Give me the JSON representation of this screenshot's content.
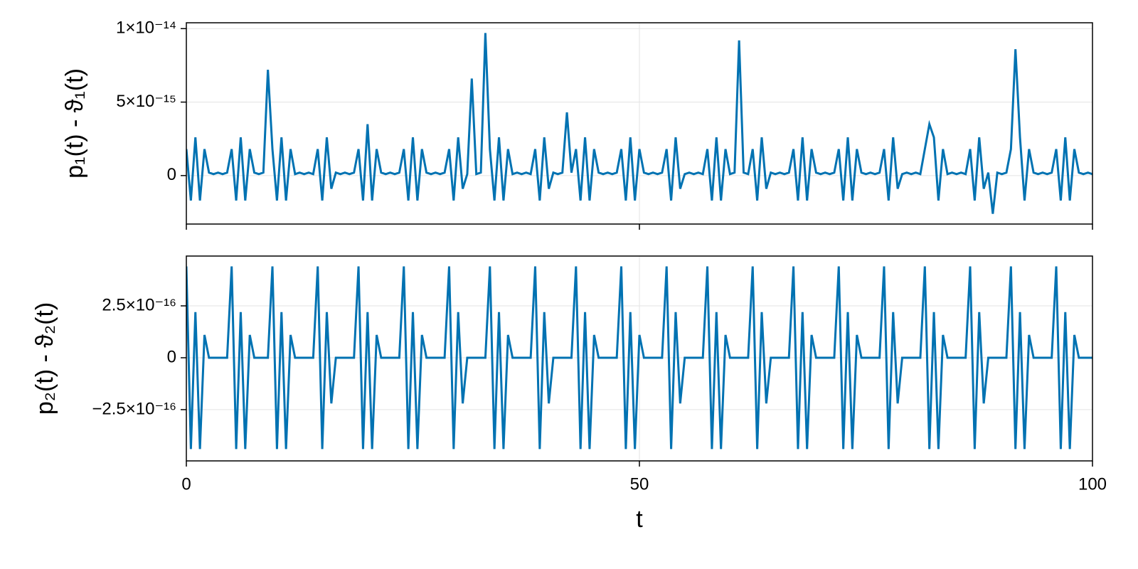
{
  "chart_data": [
    {
      "type": "line",
      "ylabel": "p₁(t) - ϑ₁(t)",
      "show_xtick_labels": false,
      "grid": true,
      "xlim": [
        0,
        100
      ],
      "xticks": [
        0,
        50,
        100
      ],
      "ylim": [
        -3.3e-15,
        1.04e-14
      ],
      "yticks": [
        0,
        {
          "value": 5e-15,
          "label": "5×10⁻¹⁵"
        },
        {
          "value": 1e-14,
          "label": "1×10⁻¹⁴"
        }
      ],
      "x": [
        0,
        0.5,
        1,
        1.5,
        2,
        2.5,
        3,
        3.5,
        4,
        4.5,
        5,
        5.5,
        6,
        6.5,
        7,
        7.5,
        8,
        8.5,
        9,
        9.5,
        10,
        10.5,
        11,
        11.5,
        12,
        12.5,
        13,
        13.5,
        14,
        14.5,
        15,
        15.5,
        16,
        16.5,
        17,
        17.5,
        18,
        18.5,
        19,
        19.5,
        20,
        20.5,
        21,
        21.5,
        22,
        22.5,
        23,
        23.5,
        24,
        24.5,
        25,
        25.5,
        26,
        26.5,
        27,
        27.5,
        28,
        28.5,
        29,
        29.5,
        30,
        30.5,
        31,
        31.5,
        32,
        32.5,
        33,
        33.5,
        34,
        34.5,
        35,
        35.5,
        36,
        36.5,
        37,
        37.5,
        38,
        38.5,
        39,
        39.5,
        40,
        40.5,
        41,
        41.5,
        42,
        42.5,
        43,
        43.5,
        44,
        44.5,
        45,
        45.5,
        46,
        46.5,
        47,
        47.5,
        48,
        48.5,
        49,
        49.5,
        50,
        50.5,
        51,
        51.5,
        52,
        52.5,
        53,
        53.5,
        54,
        54.5,
        55,
        55.5,
        56,
        56.5,
        57,
        57.5,
        58,
        58.5,
        59,
        59.5,
        60,
        60.5,
        61,
        61.5,
        62,
        62.5,
        63,
        63.5,
        64,
        64.5,
        65,
        65.5,
        66,
        66.5,
        67,
        67.5,
        68,
        68.5,
        69,
        69.5,
        70,
        70.5,
        71,
        71.5,
        72,
        72.5,
        73,
        73.5,
        74,
        74.5,
        75,
        75.5,
        76,
        76.5,
        77,
        77.5,
        78,
        78.5,
        79,
        79.5,
        80,
        80.5,
        81,
        81.5,
        82,
        82.5,
        83,
        83.5,
        84,
        84.5,
        85,
        85.5,
        86,
        86.5,
        87,
        87.5,
        88,
        88.5,
        89,
        89.5,
        90,
        90.5,
        91,
        91.5,
        92,
        92.5,
        93,
        93.5,
        94,
        94.5,
        95,
        95.5,
        96,
        96.5,
        97,
        97.5,
        98,
        98.5,
        99,
        99.5,
        100
      ],
      "series": [
        {
          "color": "#0072b2",
          "values": [
            1.8e-15,
            -1.7e-15,
            2.6e-15,
            -1.7e-15,
            1.8e-15,
            2e-16,
            1e-16,
            2e-16,
            1e-16,
            2e-16,
            1.8e-15,
            -1.7e-15,
            2.6e-15,
            -1.7e-15,
            1.8e-15,
            2e-16,
            1e-16,
            2e-16,
            7.2e-15,
            1.8e-15,
            -1.7e-15,
            2.6e-15,
            -1.7e-15,
            1.8e-15,
            1e-16,
            2e-16,
            1e-16,
            2e-16,
            1e-16,
            1.8e-15,
            -1.7e-15,
            2.6e-15,
            -9e-16,
            2e-16,
            1e-16,
            2e-16,
            1e-16,
            2e-16,
            1.8e-15,
            -1.7e-15,
            3.5e-15,
            -1.7e-15,
            1.8e-15,
            2e-16,
            1e-16,
            2e-16,
            1e-16,
            2e-16,
            1.8e-15,
            -1.7e-15,
            2.6e-15,
            -1.7e-15,
            1.8e-15,
            2e-16,
            1e-16,
            2e-16,
            1e-16,
            2e-16,
            1.8e-15,
            -1.7e-15,
            2.6e-15,
            -9e-16,
            1e-16,
            6.6e-15,
            1e-16,
            2e-16,
            9.7e-15,
            1.8e-15,
            -1.7e-15,
            2.6e-15,
            -1.7e-15,
            1.8e-15,
            1e-16,
            2e-16,
            1e-16,
            2e-16,
            1e-16,
            1.8e-15,
            -1.7e-15,
            2.6e-15,
            -9e-16,
            2e-16,
            1e-16,
            2e-16,
            4.3e-15,
            2e-16,
            1.8e-15,
            -1.7e-15,
            2.6e-15,
            -1.7e-15,
            1.8e-15,
            2e-16,
            1e-16,
            2e-16,
            1e-16,
            2e-16,
            1.8e-15,
            -1.7e-15,
            2.6e-15,
            -1.7e-15,
            1.8e-15,
            2e-16,
            1e-16,
            2e-16,
            1e-16,
            2e-16,
            1.8e-15,
            -1.7e-15,
            2.6e-15,
            -9e-16,
            1e-16,
            2e-16,
            1e-16,
            2e-16,
            1e-16,
            1.8e-15,
            -1.7e-15,
            2.6e-15,
            -1.7e-15,
            1.8e-15,
            1e-16,
            2e-16,
            9.2e-15,
            2e-16,
            1e-16,
            1.8e-15,
            -1.7e-15,
            2.6e-15,
            -9e-16,
            2e-16,
            1e-16,
            2e-16,
            1e-16,
            2e-16,
            1.8e-15,
            -1.7e-15,
            2.6e-15,
            -1.7e-15,
            1.8e-15,
            2e-16,
            1e-16,
            2e-16,
            1e-16,
            2e-16,
            1.8e-15,
            -1.7e-15,
            2.6e-15,
            -1.7e-15,
            1.8e-15,
            2e-16,
            1e-16,
            2e-16,
            1e-16,
            2e-16,
            1.8e-15,
            -1.7e-15,
            2.6e-15,
            -9e-16,
            1e-16,
            2e-16,
            1e-16,
            2e-16,
            1e-16,
            1.8e-15,
            3.5e-15,
            2.6e-15,
            -1.7e-15,
            1.8e-15,
            1e-16,
            2e-16,
            1e-16,
            2e-16,
            1e-16,
            1.8e-15,
            -1.7e-15,
            2.6e-15,
            -9e-16,
            2e-16,
            -2.6e-15,
            2e-16,
            1e-16,
            2e-16,
            1.8e-15,
            8.6e-15,
            2.6e-15,
            -1.7e-15,
            1.8e-15,
            2e-16,
            1e-16,
            2e-16,
            1e-16,
            2e-16,
            1.8e-15,
            -1.7e-15,
            2.6e-15,
            -1.7e-15,
            1.8e-15,
            2e-16,
            1e-16,
            2e-16,
            1e-16
          ]
        }
      ]
    },
    {
      "type": "line",
      "ylabel": "p₂(t) - ϑ₂(t)",
      "xlabel": "t",
      "show_xtick_labels": true,
      "grid": true,
      "xlim": [
        0,
        100
      ],
      "xticks": [
        0,
        50,
        100
      ],
      "ylim": [
        -4.97e-16,
        4.9e-16
      ],
      "yticks": [
        {
          "value": -2.5e-16,
          "label": "−2.5×10⁻¹⁶"
        },
        0,
        {
          "value": 2.5e-16,
          "label": "2.5×10⁻¹⁶"
        }
      ],
      "x": [
        0,
        0.5,
        1,
        1.5,
        2,
        2.5,
        3,
        3.5,
        4,
        4.5,
        5,
        5.5,
        6,
        6.5,
        7,
        7.5,
        8,
        8.5,
        9,
        9.5,
        10,
        10.5,
        11,
        11.5,
        12,
        12.5,
        13,
        13.5,
        14,
        14.5,
        15,
        15.5,
        16,
        16.5,
        17,
        17.5,
        18,
        18.5,
        19,
        19.5,
        20,
        20.5,
        21,
        21.5,
        22,
        22.5,
        23,
        23.5,
        24,
        24.5,
        25,
        25.5,
        26,
        26.5,
        27,
        27.5,
        28,
        28.5,
        29,
        29.5,
        30,
        30.5,
        31,
        31.5,
        32,
        32.5,
        33,
        33.5,
        34,
        34.5,
        35,
        35.5,
        36,
        36.5,
        37,
        37.5,
        38,
        38.5,
        39,
        39.5,
        40,
        40.5,
        41,
        41.5,
        42,
        42.5,
        43,
        43.5,
        44,
        44.5,
        45,
        45.5,
        46,
        46.5,
        47,
        47.5,
        48,
        48.5,
        49,
        49.5,
        50,
        50.5,
        51,
        51.5,
        52,
        52.5,
        53,
        53.5,
        54,
        54.5,
        55,
        55.5,
        56,
        56.5,
        57,
        57.5,
        58,
        58.5,
        59,
        59.5,
        60,
        60.5,
        61,
        61.5,
        62,
        62.5,
        63,
        63.5,
        64,
        64.5,
        65,
        65.5,
        66,
        66.5,
        67,
        67.5,
        68,
        68.5,
        69,
        69.5,
        70,
        70.5,
        71,
        71.5,
        72,
        72.5,
        73,
        73.5,
        74,
        74.5,
        75,
        75.5,
        76,
        76.5,
        77,
        77.5,
        78,
        78.5,
        79,
        79.5,
        80,
        80.5,
        81,
        81.5,
        82,
        82.5,
        83,
        83.5,
        84,
        84.5,
        85,
        85.5,
        86,
        86.5,
        87,
        87.5,
        88,
        88.5,
        89,
        89.5,
        90,
        90.5,
        91,
        91.5,
        92,
        92.5,
        93,
        93.5,
        94,
        94.5,
        95,
        95.5,
        96,
        96.5,
        97,
        97.5,
        98,
        98.5,
        99,
        99.5,
        100
      ],
      "series": [
        {
          "color": "#0072b2",
          "values": [
            4.4e-16,
            -4.4e-16,
            2.2e-16,
            -4.4e-16,
            1.1e-16,
            0,
            0,
            0,
            0,
            0,
            4.4e-16,
            -4.4e-16,
            2.2e-16,
            -4.4e-16,
            1.1e-16,
            0,
            0,
            0,
            0,
            4.4e-16,
            -4.4e-16,
            2.2e-16,
            -4.4e-16,
            1.1e-16,
            0,
            0,
            0,
            0,
            0,
            4.4e-16,
            -4.4e-16,
            2.2e-16,
            -2.2e-16,
            0,
            0,
            0,
            0,
            0,
            4.4e-16,
            -4.4e-16,
            2.2e-16,
            -4.4e-16,
            1.1e-16,
            0,
            0,
            0,
            0,
            0,
            4.4e-16,
            -4.4e-16,
            2.2e-16,
            -4.4e-16,
            1.1e-16,
            0,
            0,
            0,
            0,
            0,
            4.4e-16,
            -4.4e-16,
            2.2e-16,
            -2.2e-16,
            0,
            0,
            0,
            0,
            0,
            4.4e-16,
            -4.4e-16,
            2.2e-16,
            -4.4e-16,
            1.1e-16,
            0,
            0,
            0,
            0,
            0,
            4.4e-16,
            -4.4e-16,
            2.2e-16,
            -2.2e-16,
            0,
            0,
            0,
            0,
            0,
            4.4e-16,
            -4.4e-16,
            2.2e-16,
            -4.4e-16,
            1.1e-16,
            0,
            0,
            0,
            0,
            0,
            4.4e-16,
            -4.4e-16,
            2.2e-16,
            -4.4e-16,
            1.1e-16,
            0,
            0,
            0,
            0,
            0,
            4.4e-16,
            -4.4e-16,
            2.2e-16,
            -2.2e-16,
            0,
            0,
            0,
            0,
            0,
            4.4e-16,
            -4.4e-16,
            2.2e-16,
            -4.4e-16,
            1.1e-16,
            0,
            0,
            0,
            0,
            0,
            4.4e-16,
            -4.4e-16,
            2.2e-16,
            -2.2e-16,
            0,
            0,
            0,
            0,
            0,
            4.4e-16,
            -4.4e-16,
            2.2e-16,
            -4.4e-16,
            1.1e-16,
            0,
            0,
            0,
            0,
            0,
            4.4e-16,
            -4.4e-16,
            2.2e-16,
            -4.4e-16,
            1.1e-16,
            0,
            0,
            0,
            0,
            0,
            4.4e-16,
            -4.4e-16,
            2.2e-16,
            -2.2e-16,
            0,
            0,
            0,
            0,
            0,
            4.4e-16,
            -4.4e-16,
            2.2e-16,
            -4.4e-16,
            1.1e-16,
            0,
            0,
            0,
            0,
            0,
            4.4e-16,
            -4.4e-16,
            2.2e-16,
            -2.2e-16,
            0,
            0,
            0,
            0,
            0,
            4.4e-16,
            -4.4e-16,
            2.2e-16,
            -4.4e-16,
            1.1e-16,
            0,
            0,
            0,
            0,
            0,
            4.4e-16,
            -4.4e-16,
            2.2e-16,
            -4.4e-16,
            1.1e-16,
            0,
            0,
            0,
            0
          ]
        }
      ]
    }
  ]
}
